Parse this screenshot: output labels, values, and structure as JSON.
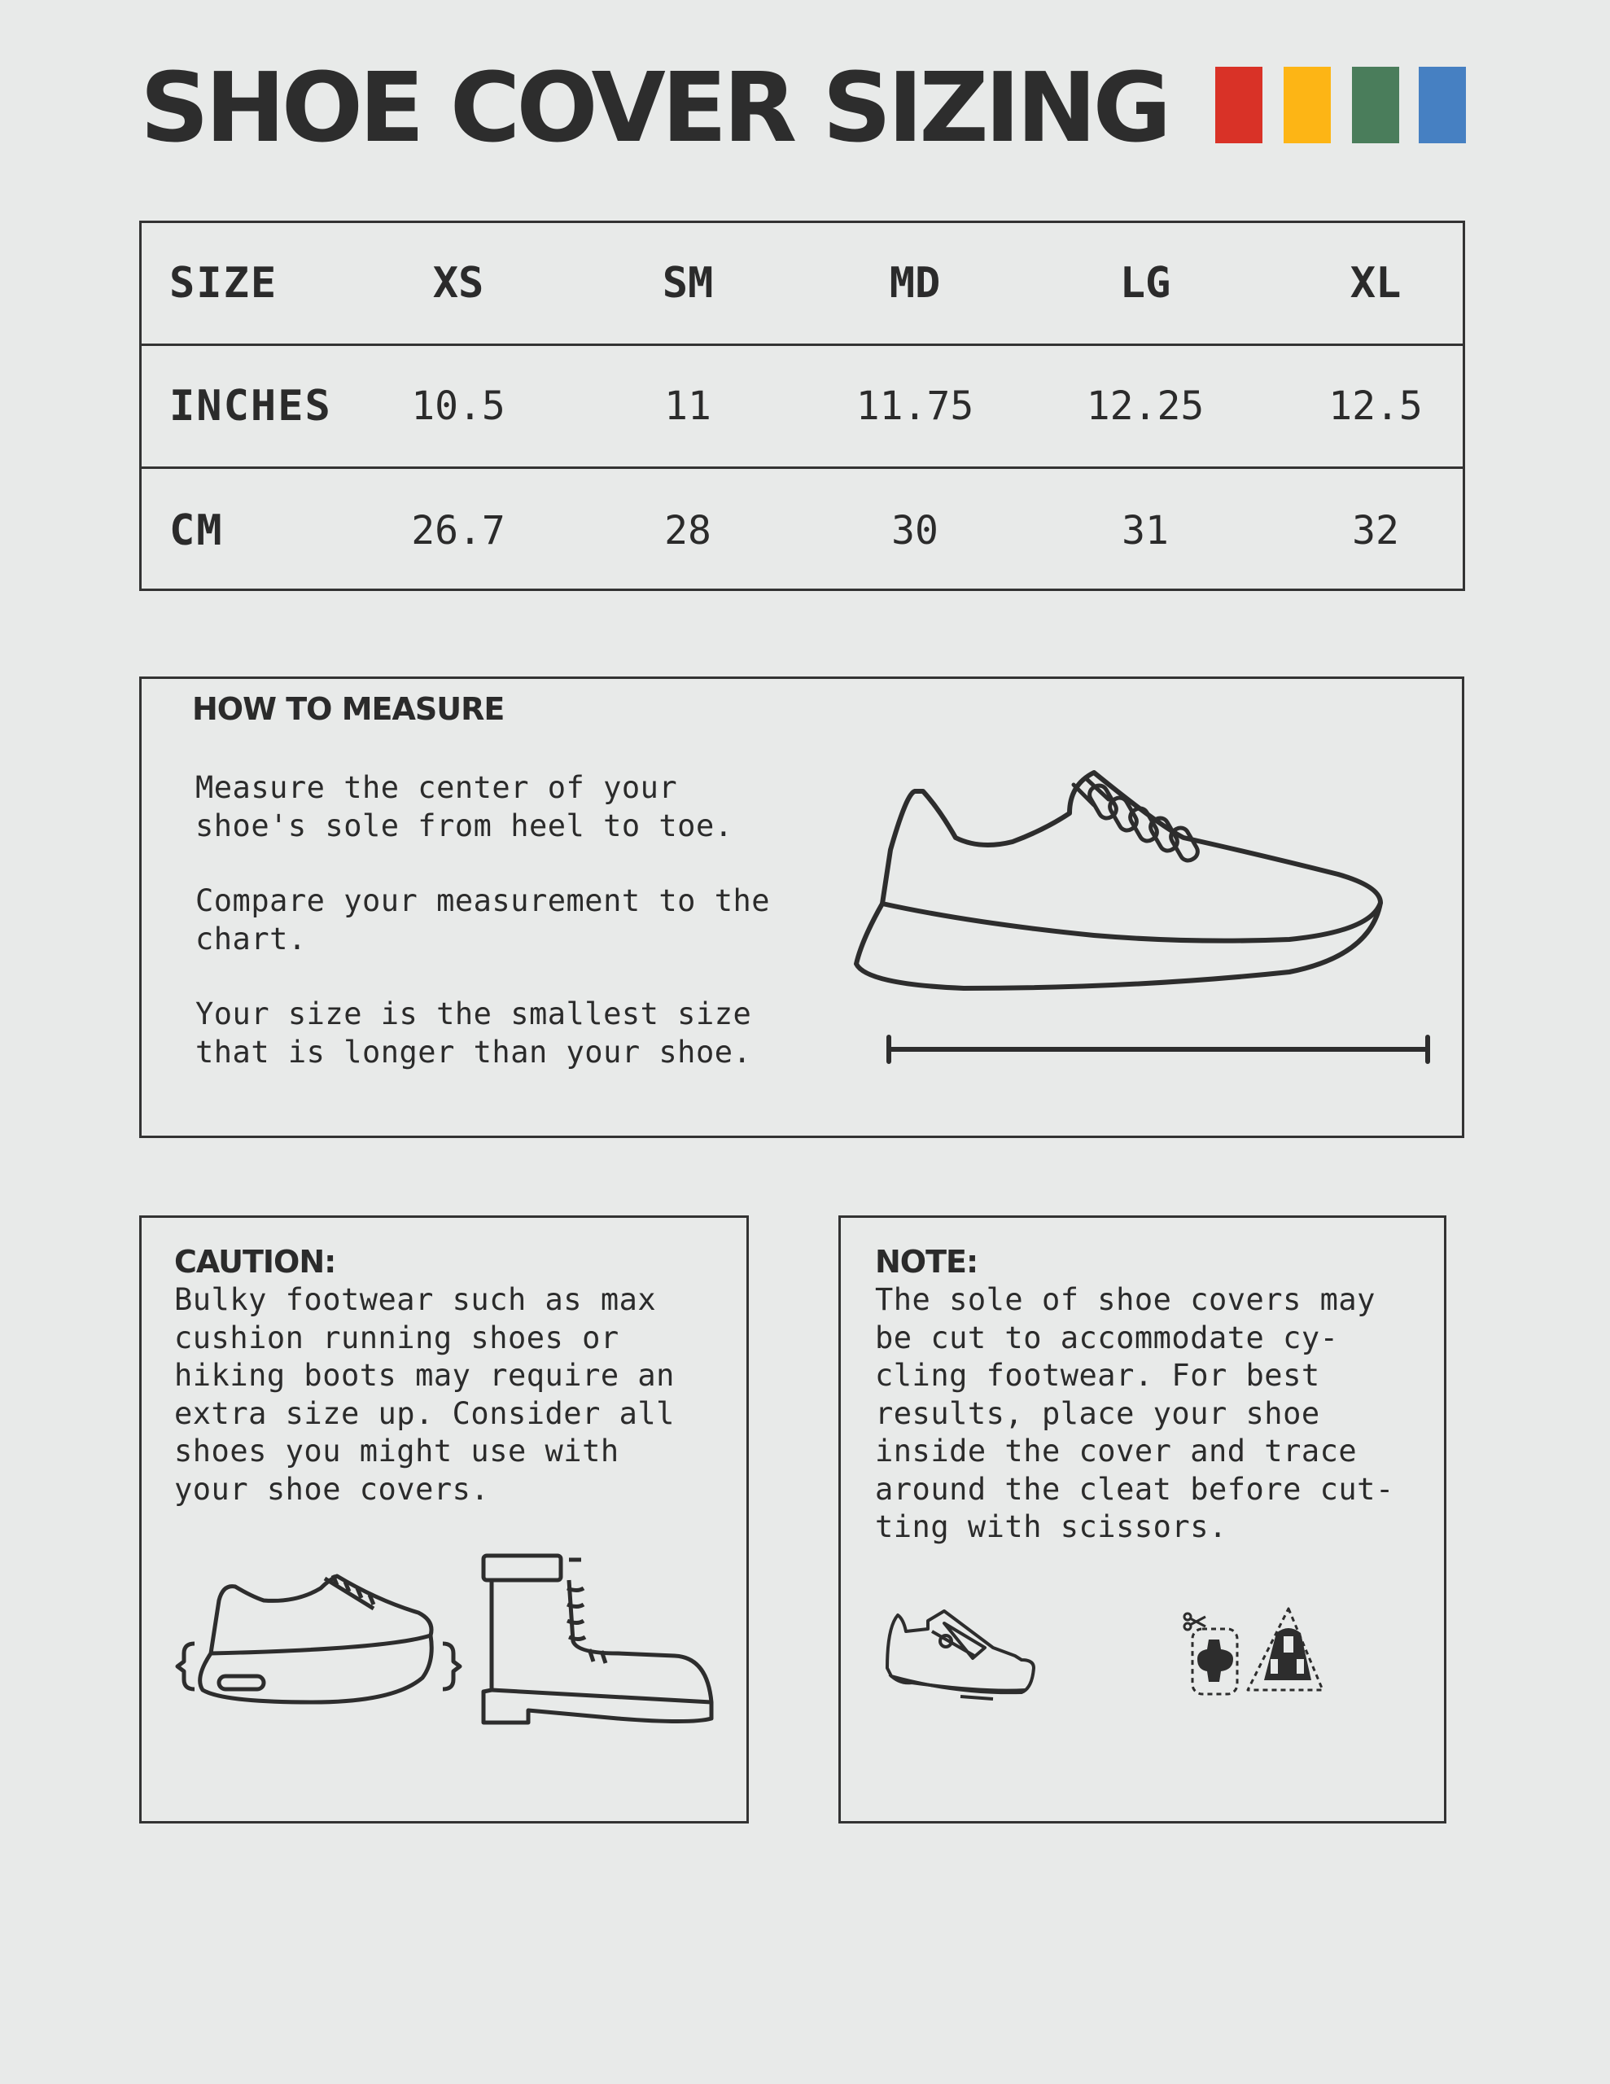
{
  "title": "SHOE COVER SIZING",
  "brand_colors": [
    "#d93227",
    "#fdb515",
    "#4a7d5b",
    "#4680c2"
  ],
  "table": {
    "headers": [
      "SIZE",
      "XS",
      "SM",
      "MD",
      "LG",
      "XL"
    ],
    "rows": [
      {
        "label": "INCHES",
        "values": [
          "10.5",
          "11",
          "11.75",
          "12.25",
          "12.5"
        ]
      },
      {
        "label": "CM",
        "values": [
          "26.7",
          "28",
          "30",
          "31",
          "32"
        ]
      }
    ]
  },
  "how_to_measure": {
    "heading": "HOW TO MEASURE",
    "paragraphs": [
      "Measure the center of your\nshoe's sole from heel to toe.",
      "Compare your measurement to the\nchart.",
      "Your size is the smallest size\nthat is longer than your shoe."
    ],
    "illustration": "sneaker-with-length-ruler-icon"
  },
  "caution": {
    "heading": "CAUTION:",
    "text": "Bulky footwear such as max\ncushion running shoes or\nhiking boots may require an\nextra size up. Consider all\nshoes you might use with\nyour shoe covers.",
    "illustrations": [
      "cushion-running-shoe-icon",
      "hiking-boot-icon"
    ]
  },
  "note": {
    "heading": "NOTE:",
    "text": "The sole of shoe covers may\nbe cut to accommodate cy-\ncling footwear. For best\nresults, place your shoe\ninside the cover and trace\naround the cleat before cut-\nting with scissors.",
    "illustrations": [
      "cycling-shoe-icon",
      "scissors-icon",
      "cleat-icon"
    ]
  }
}
